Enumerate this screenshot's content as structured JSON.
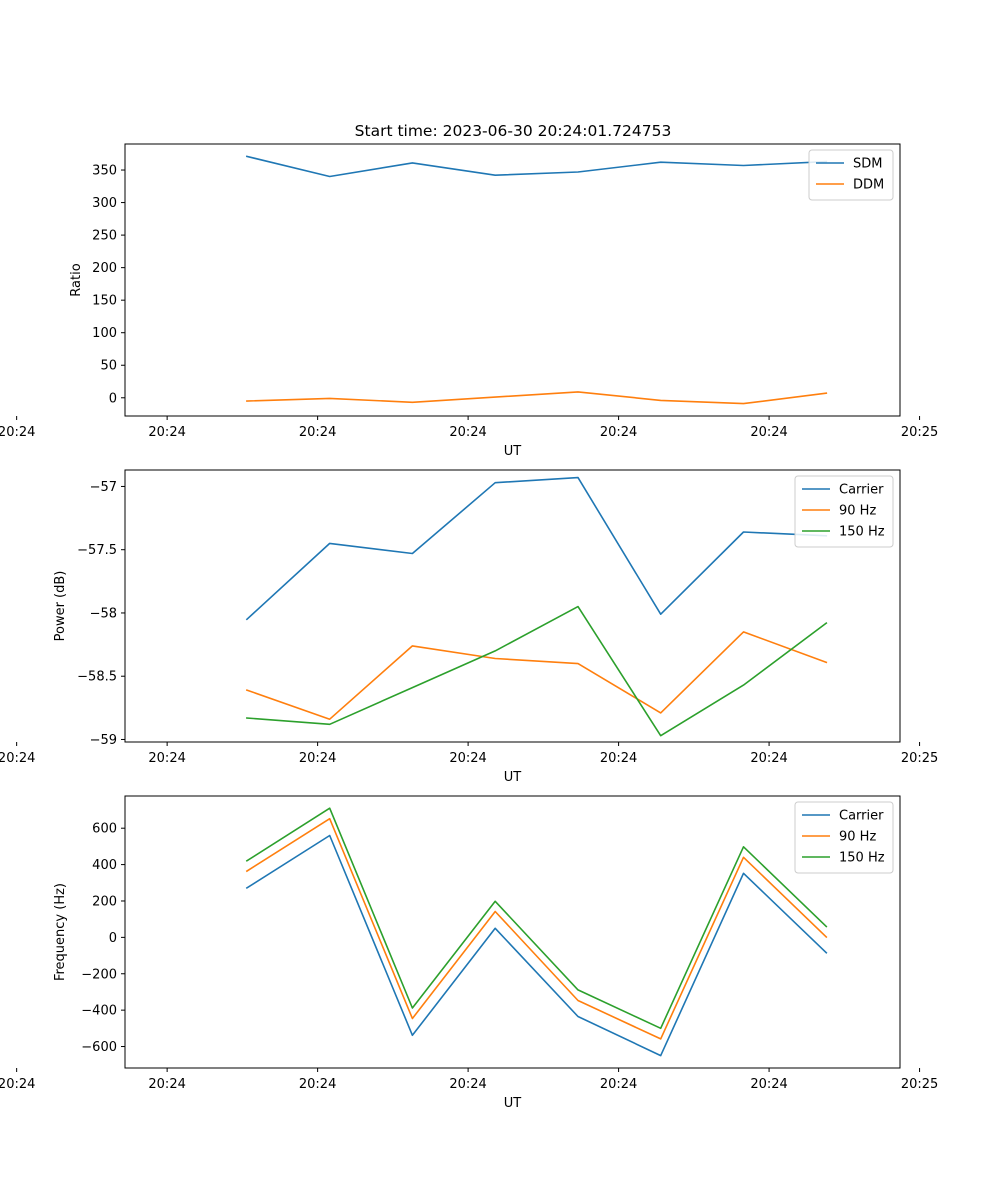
{
  "figure": {
    "title": "Start time: 2023-06-30 20:24:01.724753"
  },
  "chart_data": [
    {
      "type": "line",
      "xlabel": "UT",
      "ylabel": "Ratio",
      "x": [
        "20:24:02.53",
        "20:24:03.08",
        "20:24:03.63",
        "20:24:04.18",
        "20:24:04.73",
        "20:24:05.28",
        "20:24:05.83",
        "20:24:06.38"
      ],
      "xlim": [
        "20:24:01.72",
        "20:24:06.87"
      ],
      "xticks": [
        "20:24",
        "20:24",
        "20:24",
        "20:24",
        "20:24",
        "20:24",
        "20:25"
      ],
      "ylim": [
        -28,
        390
      ],
      "yticks": [
        0,
        50,
        100,
        150,
        200,
        250,
        300,
        350
      ],
      "legend": "top-right",
      "series": [
        {
          "name": "SDM",
          "color": "#1f77b4",
          "values": [
            371,
            340,
            361,
            342,
            347,
            362,
            357,
            363
          ]
        },
        {
          "name": "DDM",
          "color": "#ff7f0e",
          "values": [
            -5,
            -1,
            -7,
            1,
            9,
            -4,
            -9,
            7
          ]
        }
      ]
    },
    {
      "type": "line",
      "xlabel": "UT",
      "ylabel": "Power (dB)",
      "x": [
        "20:24:02.53",
        "20:24:03.08",
        "20:24:03.63",
        "20:24:04.18",
        "20:24:04.73",
        "20:24:05.28",
        "20:24:05.83",
        "20:24:06.38"
      ],
      "xlim": [
        "20:24:01.72",
        "20:24:06.87"
      ],
      "xticks": [
        "20:24",
        "20:24",
        "20:24",
        "20:24",
        "20:24",
        "20:24",
        "20:25"
      ],
      "ylim": [
        -59.02,
        -56.87
      ],
      "yticks": [
        -59.0,
        -58.5,
        -58.0,
        -57.5,
        -57.0
      ],
      "legend": "top-right",
      "series": [
        {
          "name": "Carrier",
          "color": "#1f77b4",
          "values": [
            -58.05,
            -57.45,
            -57.53,
            -56.97,
            -56.93,
            -58.01,
            -57.36,
            -57.39
          ]
        },
        {
          "name": "90 Hz",
          "color": "#ff7f0e",
          "values": [
            -58.61,
            -58.84,
            -58.26,
            -58.36,
            -58.4,
            -58.79,
            -58.15,
            -58.39
          ]
        },
        {
          "name": "150 Hz",
          "color": "#2ca02c",
          "values": [
            -58.83,
            -58.88,
            -58.59,
            -58.3,
            -57.95,
            -58.97,
            -58.57,
            -58.08
          ]
        }
      ]
    },
    {
      "type": "line",
      "xlabel": "UT",
      "ylabel": "Frequency (Hz)",
      "x": [
        "20:24:02.53",
        "20:24:03.08",
        "20:24:03.63",
        "20:24:04.18",
        "20:24:04.73",
        "20:24:05.28",
        "20:24:05.83",
        "20:24:06.38"
      ],
      "xlim": [
        "20:24:01.72",
        "20:24:06.87"
      ],
      "xticks": [
        "20:24",
        "20:24",
        "20:24",
        "20:24",
        "20:24",
        "20:24",
        "20:25"
      ],
      "ylim": [
        -718,
        777
      ],
      "yticks": [
        -600,
        -400,
        -200,
        0,
        200,
        400,
        600
      ],
      "legend": "top-right",
      "series": [
        {
          "name": "Carrier",
          "color": "#1f77b4",
          "values": [
            272,
            560,
            -538,
            50,
            -435,
            -650,
            352,
            -85
          ]
        },
        {
          "name": "90 Hz",
          "color": "#ff7f0e",
          "values": [
            364,
            652,
            -446,
            142,
            -347,
            -558,
            440,
            2
          ]
        },
        {
          "name": "150 Hz",
          "color": "#2ca02c",
          "values": [
            421,
            710,
            -388,
            198,
            -289,
            -500,
            498,
            60
          ]
        }
      ]
    }
  ]
}
